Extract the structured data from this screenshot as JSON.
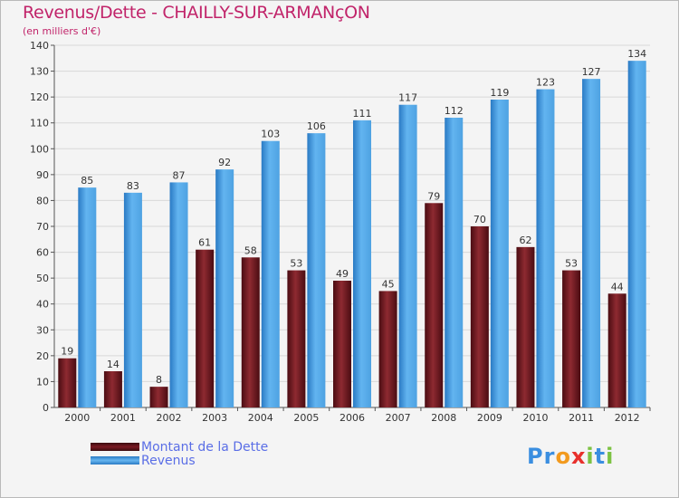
{
  "title": "Revenus/Dette - CHAILLY-SUR-ARMANçON",
  "subtitle": "(en milliers d'€)",
  "chart_data": {
    "type": "bar",
    "categories": [
      "2000",
      "2001",
      "2002",
      "2003",
      "2004",
      "2005",
      "2006",
      "2007",
      "2008",
      "2009",
      "2010",
      "2011",
      "2012"
    ],
    "series": [
      {
        "name": "Montant de la Dette",
        "values": [
          19,
          14,
          8,
          61,
          58,
          53,
          49,
          45,
          79,
          70,
          62,
          53,
          44
        ],
        "color": "#7a1a22"
      },
      {
        "name": "Revenus",
        "values": [
          85,
          83,
          87,
          92,
          103,
          106,
          111,
          117,
          112,
          119,
          123,
          127,
          134
        ],
        "color": "#56aaea"
      }
    ],
    "ylim": [
      0,
      140
    ],
    "yticks": [
      0,
      10,
      20,
      30,
      40,
      50,
      60,
      70,
      80,
      90,
      100,
      110,
      120,
      130,
      140
    ],
    "grid": true,
    "legend_position": "bottom-left"
  },
  "logo": {
    "letters": [
      "P",
      "r",
      "o",
      "x",
      "i",
      "t",
      "i"
    ],
    "colors": [
      "#3a8ee0",
      "#3a8ee0",
      "#f29a1e",
      "#e8302c",
      "#7cc242",
      "#3a8ee0",
      "#7cc242"
    ]
  }
}
